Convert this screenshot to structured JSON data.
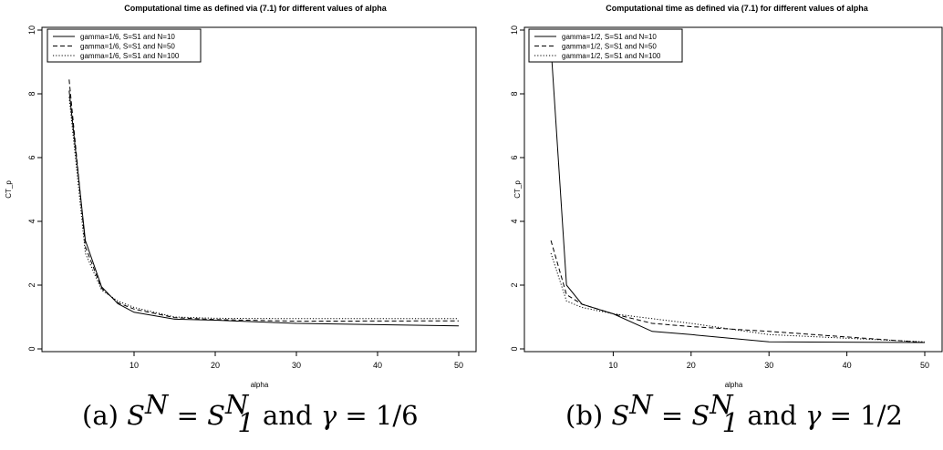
{
  "chart_data": [
    {
      "type": "line",
      "title": "Computational time as defined via (7.1) for different values of alpha",
      "xlabel": "alpha",
      "ylabel": "CT_p",
      "xlim": [
        2,
        50
      ],
      "ylim": [
        0,
        10
      ],
      "xticks": [
        "10",
        "20",
        "30",
        "40",
        "50"
      ],
      "yticks": [
        "0",
        "2",
        "4",
        "6",
        "8",
        "10"
      ],
      "legend_position": "top-left",
      "caption": {
        "prefix": "(a) ",
        "lhs": "S",
        "lhs_sup": "N",
        "rhs": "S",
        "rhs_sub": "1",
        "rhs_sup": "N",
        "and": " and ",
        "gamma": "γ",
        "gamma_value": "= 1/6"
      },
      "series": [
        {
          "name": "gamma=1/6, S=S1 and N=10",
          "dash": "solid",
          "x": [
            2,
            4,
            6,
            8,
            10,
            15,
            20,
            30,
            50
          ],
          "y": [
            8.1,
            3.4,
            1.95,
            1.42,
            1.15,
            0.93,
            0.9,
            0.8,
            0.72
          ]
        },
        {
          "name": "gamma=1/6, S=S1 and N=50",
          "dash": "dashed",
          "x": [
            2,
            4,
            6,
            8,
            10,
            15,
            20,
            30,
            50
          ],
          "y": [
            8.45,
            3.2,
            1.9,
            1.45,
            1.25,
            0.98,
            0.92,
            0.87,
            0.88
          ]
        },
        {
          "name": "gamma=1/6, S=S1 and N=100",
          "dash": "dotted",
          "x": [
            2,
            4,
            6,
            8,
            10,
            15,
            20,
            30,
            50
          ],
          "y": [
            7.9,
            3.0,
            1.85,
            1.5,
            1.3,
            1.0,
            0.96,
            0.95,
            0.95
          ]
        }
      ]
    },
    {
      "type": "line",
      "title": "Computational time as defined via (7.1) for different values of alpha",
      "xlabel": "alpha",
      "ylabel": "CT_p",
      "xlim": [
        2,
        50
      ],
      "ylim": [
        0,
        10
      ],
      "xticks": [
        "10",
        "20",
        "30",
        "40",
        "50"
      ],
      "yticks": [
        "0",
        "2",
        "4",
        "6",
        "8",
        "10"
      ],
      "legend_position": "top-left",
      "caption": {
        "prefix": "(b) ",
        "lhs": "S",
        "lhs_sup": "N",
        "rhs": "S",
        "rhs_sub": "1",
        "rhs_sup": "N",
        "and": " and ",
        "gamma": "γ",
        "gamma_value": "= 1/2"
      },
      "series": [
        {
          "name": "gamma=1/2, S=S1 and N=10",
          "dash": "solid",
          "x": [
            2,
            4,
            6,
            10,
            15,
            20,
            30,
            50
          ],
          "y": [
            9.5,
            2.0,
            1.4,
            1.1,
            0.55,
            0.45,
            0.22,
            0.2
          ]
        },
        {
          "name": "gamma=1/2, S=S1 and N=50",
          "dash": "dashed",
          "x": [
            2,
            4,
            6,
            10,
            15,
            20,
            30,
            50
          ],
          "y": [
            3.4,
            1.7,
            1.4,
            1.1,
            0.8,
            0.7,
            0.55,
            0.2
          ]
        },
        {
          "name": "gamma=1/2, S=S1 and N=100",
          "dash": "dotted",
          "x": [
            2,
            4,
            6,
            10,
            15,
            20,
            30,
            50
          ],
          "y": [
            3.0,
            1.5,
            1.3,
            1.1,
            0.95,
            0.8,
            0.45,
            0.22
          ]
        }
      ]
    }
  ]
}
